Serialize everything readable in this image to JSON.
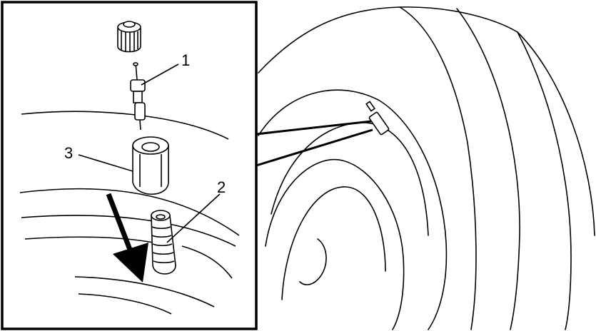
{
  "diagram": {
    "callouts": [
      {
        "id": "1",
        "label": "1"
      },
      {
        "id": "2",
        "label": "2"
      },
      {
        "id": "3",
        "label": "3"
      }
    ],
    "colors": {
      "line": "#000000",
      "background": "#ffffff"
    }
  }
}
